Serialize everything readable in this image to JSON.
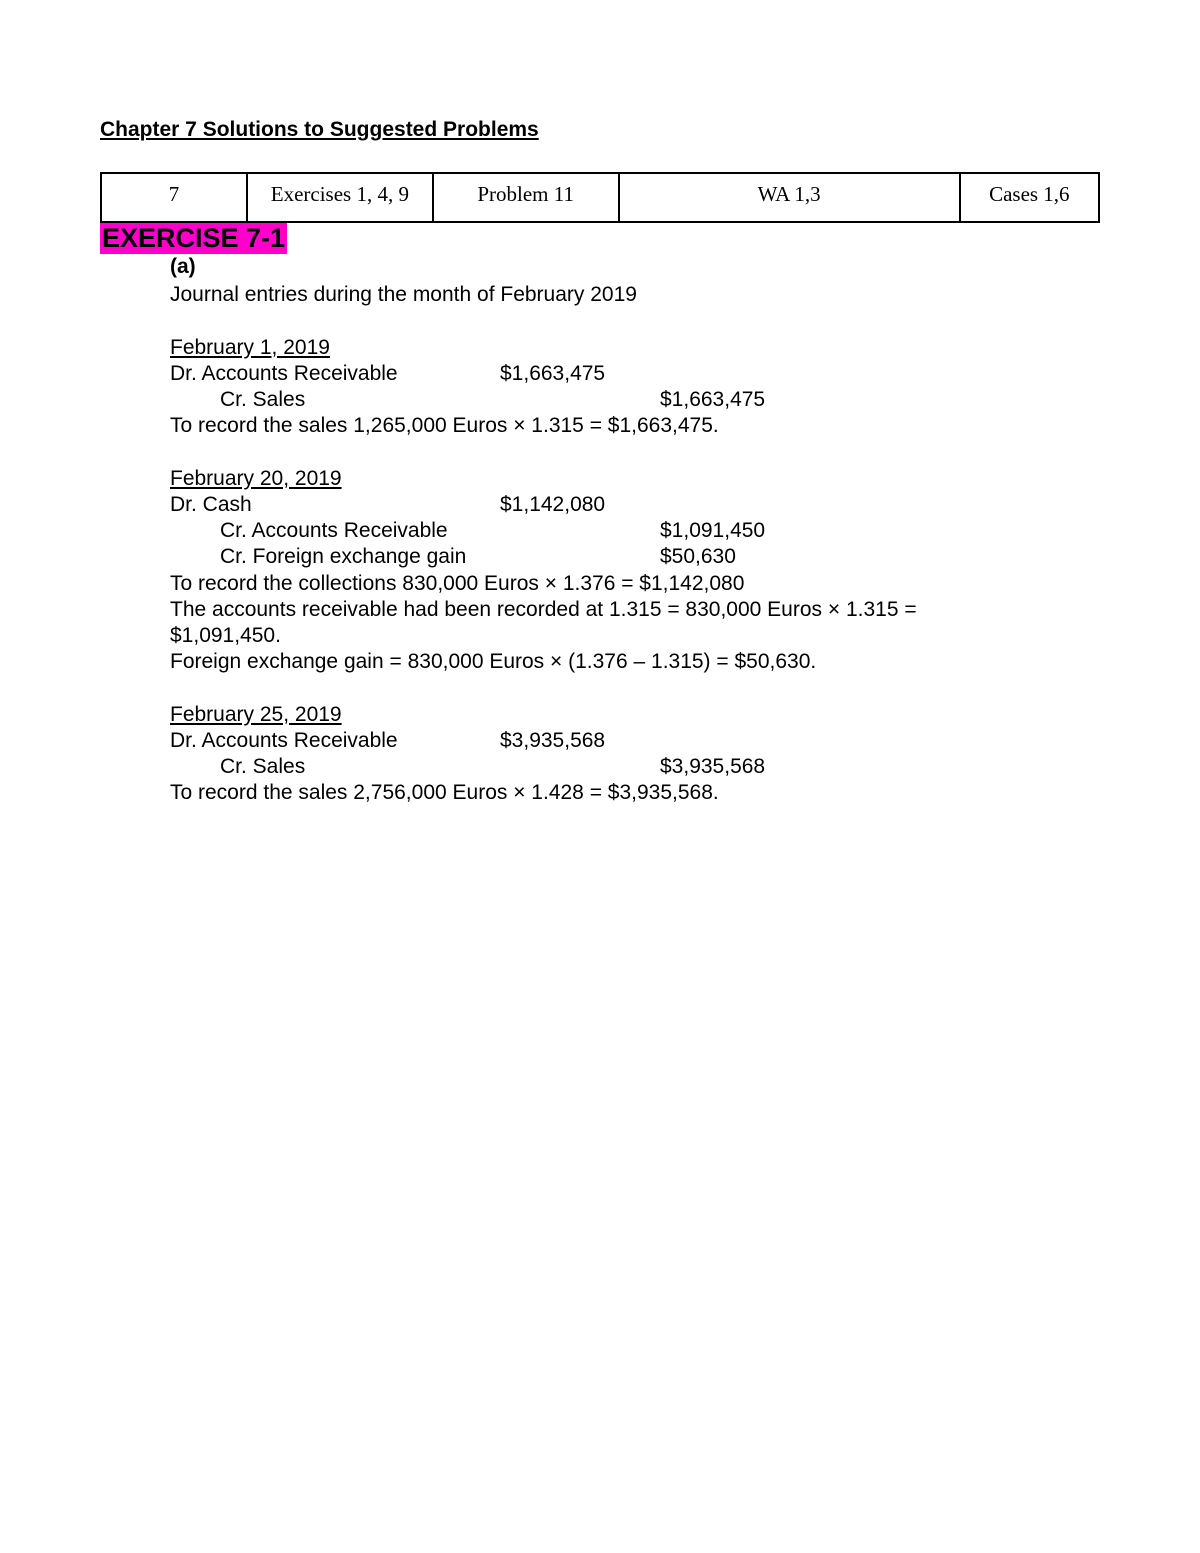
{
  "colors": {
    "highlight_bg": "#ff00cc",
    "text": "#000000",
    "page_bg": "#ffffff",
    "border": "#000000"
  },
  "page_title": "Chapter 7 Solutions to Suggested Problems",
  "header_table": {
    "cells": [
      "7",
      "Exercises 1, 4, 9",
      "Problem 11",
      "WA 1,3",
      "Cases 1,6"
    ]
  },
  "exercise": {
    "heading": "EXERCISE 7-1",
    "part_label": "(a)",
    "intro": "Journal entries during the month of February 2019",
    "entries": [
      {
        "date": "February 1, 2019",
        "lines": [
          {
            "type": "dr",
            "account": "Dr. Accounts Receivable",
            "debit": "$1,663,475",
            "credit": ""
          },
          {
            "type": "cr",
            "account": "Cr. Sales",
            "debit": "",
            "credit": "$1,663,475"
          }
        ],
        "notes": [
          "To record the sales 1,265,000 Euros × 1.315 = $1,663,475."
        ]
      },
      {
        "date": "February 20, 2019",
        "lines": [
          {
            "type": "dr",
            "account": "Dr. Cash",
            "debit": "$1,142,080",
            "credit": ""
          },
          {
            "type": "cr",
            "account": "Cr. Accounts Receivable",
            "debit": "",
            "credit": "$1,091,450"
          },
          {
            "type": "cr",
            "account": "Cr. Foreign exchange gain",
            "debit": "",
            "credit": "$50,630"
          }
        ],
        "notes": [
          "To record the collections 830,000 Euros × 1.376 = $1,142,080",
          "The accounts receivable had been recorded at 1.315 = 830,000 Euros × 1.315 = $1,091,450.",
          "Foreign exchange gain = 830,000 Euros × (1.376 – 1.315) = $50,630."
        ]
      },
      {
        "date": "February 25, 2019",
        "lines": [
          {
            "type": "dr",
            "account": "Dr. Accounts Receivable",
            "debit": "$3,935,568",
            "credit": ""
          },
          {
            "type": "cr",
            "account": "Cr. Sales",
            "debit": "",
            "credit": "$3,935,568"
          }
        ],
        "notes": [
          "To record the sales 2,756,000 Euros × 1.428 = $3,935,568."
        ]
      }
    ]
  }
}
